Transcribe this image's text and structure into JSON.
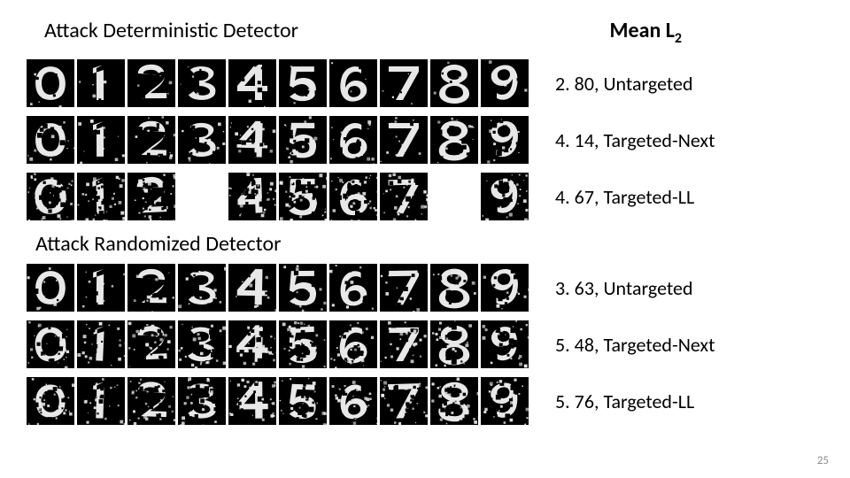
{
  "sections": [
    {
      "title": "Attack Deterministic Detector",
      "show_header": true,
      "rows": [
        {
          "label": "2. 80, Untargeted",
          "noise": 0.05,
          "full": true
        },
        {
          "label": "4. 14, Targeted-Next",
          "noise": 0.15,
          "full": true
        },
        {
          "label": "4. 67, Targeted-LL",
          "noise": 0.35,
          "full": false
        }
      ]
    },
    {
      "title": "Attack Randomized Detector",
      "show_header": false,
      "rows": [
        {
          "label": "3. 63, Untargeted",
          "noise": 0.12,
          "full": true
        },
        {
          "label": "5. 48, Targeted-Next",
          "noise": 0.28,
          "full": true
        },
        {
          "label": "5. 76, Targeted-LL",
          "noise": 0.3,
          "full": true
        }
      ]
    }
  ],
  "mean_header": "Mean L",
  "mean_sub": "2",
  "page_number": "25",
  "digit_paths": [
    "M27 8 C15 8 10 18 10 27 C10 38 15 46 27 46 C39 46 44 38 44 27 C44 18 39 8 27 8 M27 14 C34 14 37 20 37 27 C37 34 34 40 27 40 C20 40 17 34 17 27 C17 20 20 14 27 14 Z",
    "M22 10 L30 6 L30 46 L22 46 Z M18 10 L30 6 L30 12 L18 16 Z",
    "M12 16 C12 10 18 6 27 6 C36 6 42 11 42 18 C42 24 36 28 28 34 L16 44 L44 44 L44 38 L26 38 C34 32 42 27 42 18 M18 16 C18 13 22 12 27 12 C32 12 35 14 35 18 Z",
    "M14 12 C18 7 36 6 40 14 C42 20 34 24 30 26 C36 27 44 30 42 38 C40 48 16 48 12 40 L18 36 C20 42 34 42 36 37 C37 32 28 30 24 30 L24 24 C30 24 36 22 34 16 C32 12 20 12 18 16 Z",
    "M32 6 L38 6 L38 30 L44 30 L44 36 L38 36 L38 46 L30 46 L30 36 L10 36 L10 30 L30 6 M30 16 L18 30 L30 30 Z",
    "M14 8 L40 8 L40 14 L20 14 L18 24 C22 21 28 20 34 22 C42 25 44 34 40 42 C36 48 20 50 12 42 L18 38 C22 43 32 43 34 38 C36 33 32 28 26 28 C22 28 18 30 16 32 L12 30 Z",
    "M36 10 C30 6 18 8 14 20 C11 30 12 40 18 45 C24 50 38 48 42 38 C44 30 38 24 30 24 C24 24 20 28 18 32 C18 22 22 14 30 14 C33 14 35 15 36 16 Z M28 30 C33 30 36 34 35 38 C34 42 28 44 24 42 C20 40 20 34 24 31 Z",
    "M10 8 L44 8 L44 14 L26 46 L18 46 L36 14 L10 14 Z",
    "M27 6 C36 6 42 11 42 17 C42 22 37 25 32 27 C39 29 44 33 44 39 C44 46 36 50 27 50 C18 50 10 46 10 39 C10 33 15 29 22 27 C17 25 12 22 12 17 C12 11 18 6 27 6 M27 12 C22 12 19 14 19 17 C19 20 22 23 27 23 C32 23 35 20 35 17 C35 14 32 12 27 12 M27 30 C21 30 17 33 17 38 C17 42 21 44 27 44 C33 44 37 42 37 38 C37 33 33 30 27 30 Z",
    "M18 44 C24 48 36 46 40 34 C43 24 42 14 36 9 C30 4 16 6 12 16 C10 24 16 30 24 30 C30 30 34 26 36 22 C36 32 32 40 24 40 C21 40 19 39 18 38 Z M26 24 C21 24 18 20 19 16 C20 12 26 10 30 12 C34 14 34 20 30 23 Z"
  ],
  "colors": {
    "bg": "#000000",
    "fg": "#e8e8e8"
  }
}
